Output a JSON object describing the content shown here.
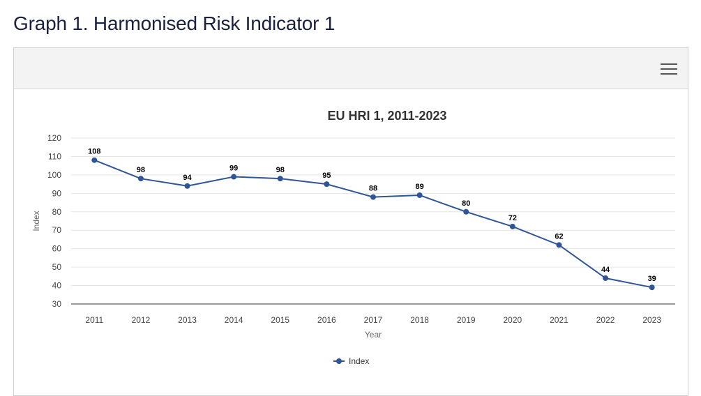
{
  "page": {
    "title": "Graph 1. Harmonised Risk Indicator 1"
  },
  "toolbar": {
    "menu_icon": "hamburger-menu-icon"
  },
  "colors": {
    "series": "#2f5597",
    "grid": "#e6e6e6",
    "axis": "#333333",
    "toolbar_bg": "#f3f3f3"
  },
  "chart_data": {
    "type": "line",
    "title": "EU HRI 1, 2011-2023",
    "xlabel": "Year",
    "ylabel": "Index",
    "ylim": [
      30,
      120
    ],
    "yticks": [
      30,
      40,
      50,
      60,
      70,
      80,
      90,
      100,
      110,
      120
    ],
    "grid": true,
    "legend_position": "bottom-center",
    "categories": [
      "2011",
      "2012",
      "2013",
      "2014",
      "2015",
      "2016",
      "2017",
      "2018",
      "2019",
      "2020",
      "2021",
      "2022",
      "2023"
    ],
    "series": [
      {
        "name": "Index",
        "values": [
          108,
          98,
          94,
          99,
          98,
          95,
          88,
          89,
          80,
          72,
          62,
          44,
          39
        ],
        "data_labels": true
      }
    ]
  }
}
